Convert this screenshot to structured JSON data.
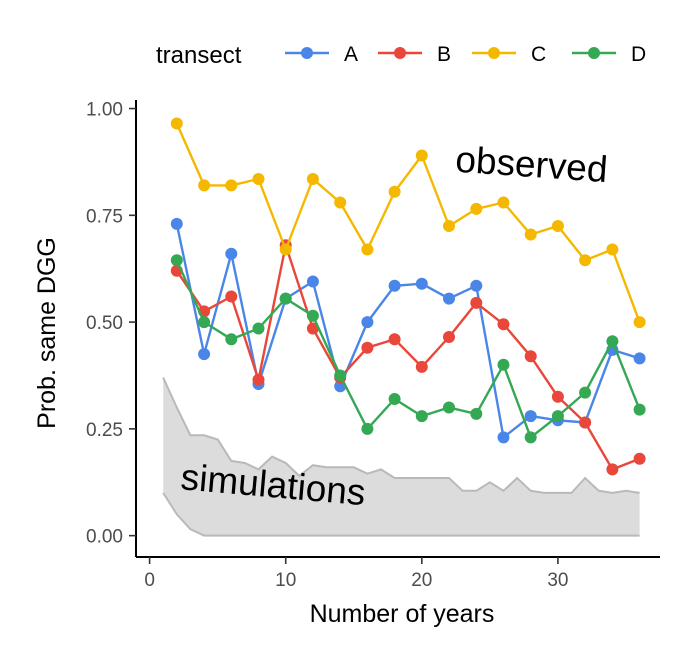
{
  "chart_data": {
    "type": "line",
    "xlabel": "Number of years",
    "ylabel": "Prob. same DGG",
    "xlim": [
      -1,
      37.5
    ],
    "ylim": [
      -0.05,
      1.02
    ],
    "xticks": [
      0,
      10,
      20,
      30
    ],
    "yticks": [
      0.0,
      0.25,
      0.5,
      0.75,
      1.0
    ],
    "ytick_labels": [
      "0.00",
      "0.25",
      "0.50",
      "0.75",
      "1.00"
    ],
    "legend": {
      "title": "transect",
      "position": "top"
    },
    "annotations": [
      {
        "text": "observed",
        "x": 28,
        "y": 0.84,
        "rotation": 4
      },
      {
        "text": "simulations",
        "x": 9,
        "y": 0.09,
        "rotation": 5
      }
    ],
    "simulation_band": {
      "name": "simulations",
      "color": "#dcdcdc",
      "edge_color": "#b9b9b9",
      "x": [
        1,
        2,
        3,
        4,
        5,
        6,
        7,
        8,
        9,
        10,
        11,
        12,
        13,
        14,
        15,
        16,
        17,
        18,
        19,
        20,
        21,
        22,
        23,
        24,
        25,
        26,
        27,
        28,
        29,
        30,
        31,
        32,
        33,
        34,
        35,
        36
      ],
      "upper": [
        0.37,
        0.3,
        0.235,
        0.235,
        0.225,
        0.175,
        0.17,
        0.155,
        0.185,
        0.17,
        0.14,
        0.165,
        0.16,
        0.16,
        0.16,
        0.145,
        0.155,
        0.135,
        0.135,
        0.135,
        0.135,
        0.135,
        0.105,
        0.105,
        0.125,
        0.105,
        0.135,
        0.105,
        0.1,
        0.1,
        0.1,
        0.135,
        0.105,
        0.1,
        0.105,
        0.1
      ],
      "lower": [
        0.1,
        0.05,
        0.015,
        0,
        0,
        0,
        0,
        0,
        0,
        0,
        0,
        0,
        0,
        0,
        0,
        0,
        0,
        0,
        0,
        0,
        0,
        0,
        0,
        0,
        0,
        0,
        0,
        0,
        0,
        0,
        0,
        0,
        0,
        0,
        0,
        0
      ]
    },
    "x": [
      2,
      4,
      6,
      8,
      10,
      12,
      14,
      16,
      18,
      20,
      22,
      24,
      26,
      28,
      30,
      32,
      34,
      36
    ],
    "series": [
      {
        "name": "A",
        "color": "#4a86e8",
        "values": [
          0.73,
          0.425,
          0.66,
          0.355,
          0.555,
          0.595,
          0.35,
          0.5,
          0.585,
          0.59,
          0.555,
          0.585,
          0.23,
          0.28,
          0.27,
          0.265,
          0.435,
          0.415
        ]
      },
      {
        "name": "B",
        "color": "#e8473a",
        "values": [
          0.62,
          0.525,
          0.56,
          0.365,
          0.68,
          0.485,
          0.37,
          0.44,
          0.46,
          0.395,
          0.465,
          0.545,
          0.495,
          0.42,
          0.325,
          0.265,
          0.155,
          0.18
        ]
      },
      {
        "name": "C",
        "color": "#f5b800",
        "values": [
          0.965,
          0.82,
          0.82,
          0.835,
          0.67,
          0.835,
          0.78,
          0.67,
          0.805,
          0.89,
          0.725,
          0.765,
          0.78,
          0.705,
          0.725,
          0.645,
          0.67,
          0.5
        ]
      },
      {
        "name": "D",
        "color": "#34a853",
        "values": [
          0.645,
          0.5,
          0.46,
          0.485,
          0.555,
          0.515,
          0.375,
          0.25,
          0.32,
          0.28,
          0.3,
          0.285,
          0.4,
          0.23,
          0.28,
          0.335,
          0.455,
          0.295
        ]
      }
    ]
  }
}
